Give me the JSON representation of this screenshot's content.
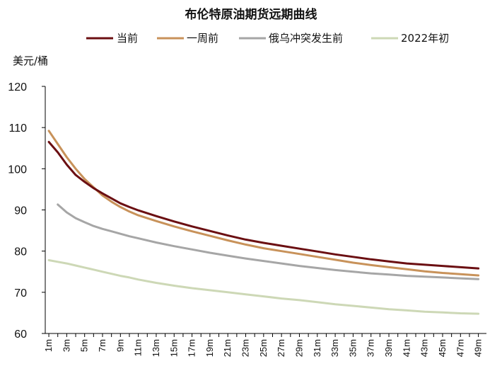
{
  "chart_data": {
    "type": "line",
    "title": "布伦特原油期货远期曲线",
    "ylabel": "美元/桶",
    "xlabel": "",
    "ylim": [
      60,
      120
    ],
    "yticks": [
      60,
      70,
      80,
      90,
      100,
      110,
      120
    ],
    "x_tick_labels": [
      "1m",
      "3m",
      "5m",
      "7m",
      "9m",
      "11m",
      "13m",
      "15m",
      "17m",
      "19m",
      "21m",
      "23m",
      "25m",
      "27m",
      "29m",
      "31m",
      "33m",
      "35m",
      "37m",
      "39m",
      "41m",
      "43m",
      "45m",
      "47m",
      "49m"
    ],
    "legend_position": "top",
    "series": [
      {
        "name": "当前",
        "color": "#6b0f12",
        "points": [
          [
            1,
            106.5
          ],
          [
            2,
            104
          ],
          [
            3,
            101
          ],
          [
            4,
            98.5
          ],
          [
            5,
            96.8
          ],
          [
            6,
            95.3
          ],
          [
            7,
            94
          ],
          [
            8,
            92.8
          ],
          [
            9,
            91.6
          ],
          [
            10,
            90.7
          ],
          [
            11,
            89.9
          ],
          [
            13,
            88.5
          ],
          [
            15,
            87.2
          ],
          [
            17,
            86
          ],
          [
            19,
            84.9
          ],
          [
            21,
            83.8
          ],
          [
            23,
            82.8
          ],
          [
            25,
            82
          ],
          [
            27,
            81.3
          ],
          [
            29,
            80.6
          ],
          [
            31,
            79.9
          ],
          [
            33,
            79.2
          ],
          [
            35,
            78.6
          ],
          [
            37,
            78
          ],
          [
            39,
            77.5
          ],
          [
            41,
            77
          ],
          [
            43,
            76.7
          ],
          [
            45,
            76.4
          ],
          [
            47,
            76.1
          ],
          [
            49,
            75.8
          ]
        ]
      },
      {
        "name": "一周前",
        "color": "#c8925a",
        "points": [
          [
            1,
            109.2
          ],
          [
            2,
            106
          ],
          [
            3,
            102.8
          ],
          [
            4,
            100
          ],
          [
            5,
            97.5
          ],
          [
            6,
            95.5
          ],
          [
            7,
            93.5
          ],
          [
            8,
            92
          ],
          [
            9,
            90.7
          ],
          [
            10,
            89.6
          ],
          [
            11,
            88.7
          ],
          [
            13,
            87.3
          ],
          [
            15,
            86
          ],
          [
            17,
            84.8
          ],
          [
            19,
            83.7
          ],
          [
            21,
            82.6
          ],
          [
            23,
            81.6
          ],
          [
            25,
            80.7
          ],
          [
            27,
            80
          ],
          [
            29,
            79.3
          ],
          [
            31,
            78.6
          ],
          [
            33,
            77.9
          ],
          [
            35,
            77.2
          ],
          [
            37,
            76.6
          ],
          [
            39,
            76.1
          ],
          [
            41,
            75.6
          ],
          [
            43,
            75.1
          ],
          [
            45,
            74.7
          ],
          [
            47,
            74.4
          ],
          [
            49,
            74.1
          ]
        ]
      },
      {
        "name": "俄乌冲突发生前",
        "color": "#a6a6a6",
        "points": [
          [
            2,
            91.3
          ],
          [
            3,
            89.4
          ],
          [
            4,
            88
          ],
          [
            5,
            87
          ],
          [
            6,
            86.1
          ],
          [
            7,
            85.4
          ],
          [
            8,
            84.8
          ],
          [
            9,
            84.2
          ],
          [
            10,
            83.6
          ],
          [
            11,
            83.1
          ],
          [
            13,
            82.1
          ],
          [
            15,
            81.2
          ],
          [
            17,
            80.4
          ],
          [
            19,
            79.6
          ],
          [
            21,
            78.9
          ],
          [
            23,
            78.2
          ],
          [
            25,
            77.6
          ],
          [
            27,
            77
          ],
          [
            29,
            76.4
          ],
          [
            31,
            75.9
          ],
          [
            33,
            75.4
          ],
          [
            35,
            75
          ],
          [
            37,
            74.6
          ],
          [
            39,
            74.3
          ],
          [
            41,
            74
          ],
          [
            43,
            73.8
          ],
          [
            45,
            73.6
          ],
          [
            47,
            73.4
          ],
          [
            49,
            73.2
          ]
        ]
      },
      {
        "name": "2022年初",
        "color": "#cdd8b6",
        "points": [
          [
            1,
            77.8
          ],
          [
            2,
            77.4
          ],
          [
            3,
            77
          ],
          [
            4,
            76.5
          ],
          [
            5,
            76
          ],
          [
            6,
            75.5
          ],
          [
            7,
            75
          ],
          [
            8,
            74.5
          ],
          [
            9,
            74
          ],
          [
            10,
            73.6
          ],
          [
            11,
            73.1
          ],
          [
            13,
            72.3
          ],
          [
            15,
            71.6
          ],
          [
            17,
            71
          ],
          [
            19,
            70.5
          ],
          [
            21,
            70
          ],
          [
            23,
            69.5
          ],
          [
            25,
            69
          ],
          [
            27,
            68.5
          ],
          [
            29,
            68.1
          ],
          [
            31,
            67.6
          ],
          [
            33,
            67.1
          ],
          [
            35,
            66.7
          ],
          [
            37,
            66.3
          ],
          [
            39,
            65.9
          ],
          [
            41,
            65.6
          ],
          [
            43,
            65.3
          ],
          [
            45,
            65.1
          ],
          [
            47,
            64.9
          ],
          [
            49,
            64.8
          ]
        ]
      }
    ]
  }
}
